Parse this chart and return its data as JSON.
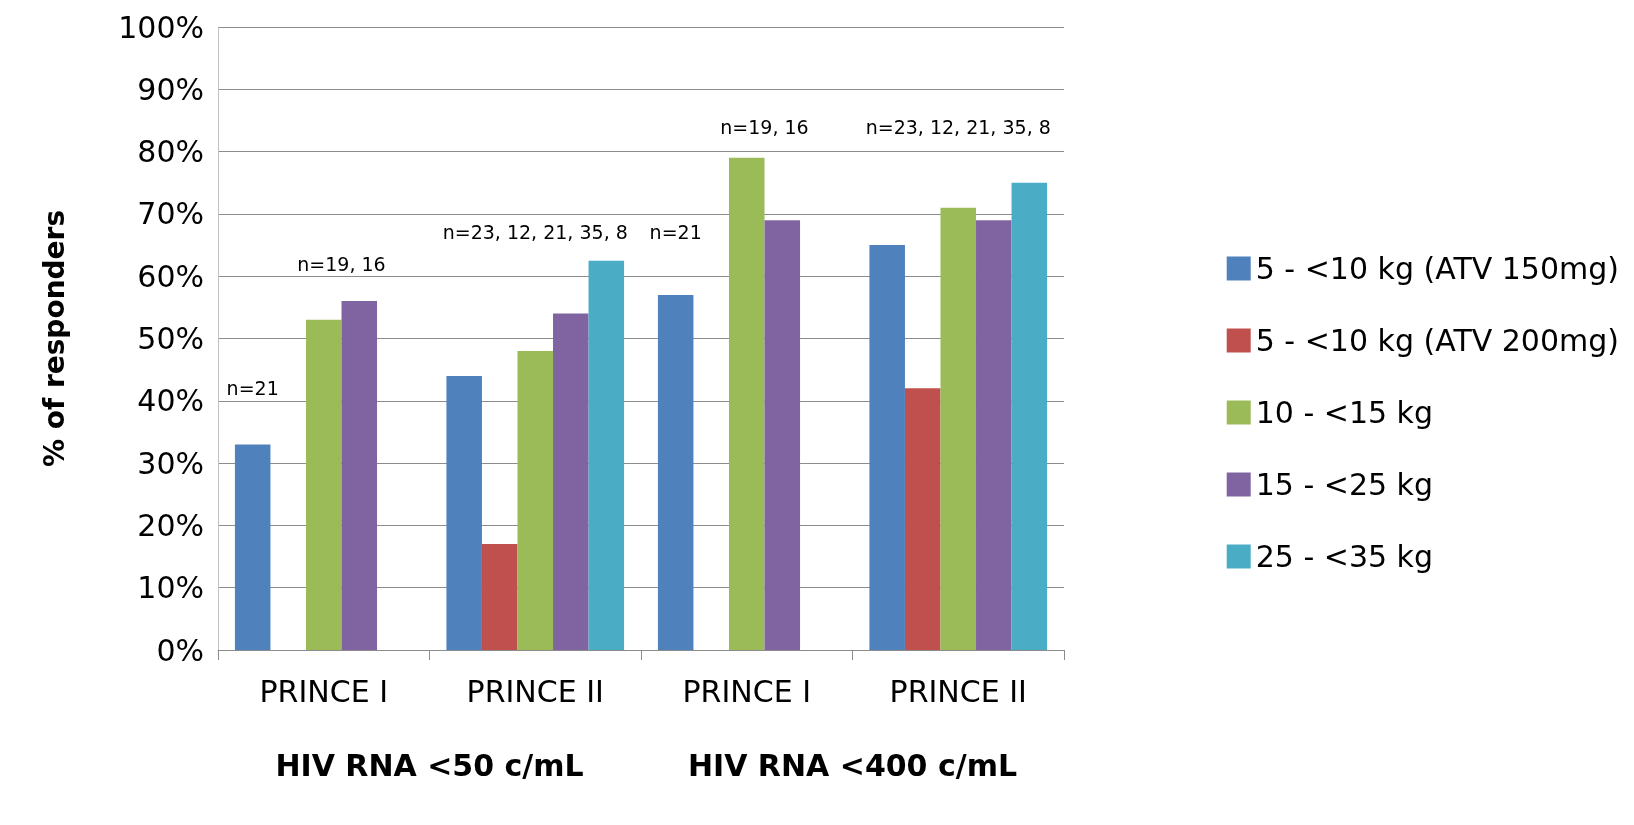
{
  "chart_data": {
    "type": "bar",
    "ylabel": "% of responders",
    "categories": [
      "PRINCE I",
      "PRINCE II",
      "PRINCE I",
      "PRINCE II"
    ],
    "series": [
      {
        "name": "5 - <10 kg (ATV 150mg)",
        "color": "#4f81bd",
        "values": [
          33,
          44,
          57,
          65
        ]
      },
      {
        "name": "5 - <10 kg (ATV 200mg)",
        "color": "#c0504d",
        "values": [
          null,
          17,
          null,
          42
        ]
      },
      {
        "name": "10 - <15 kg",
        "color": "#9bbb59",
        "values": [
          53,
          48,
          79,
          71
        ]
      },
      {
        "name": "15 - <25 kg",
        "color": "#8064a2",
        "values": [
          56,
          54,
          69,
          69
        ]
      },
      {
        "name": "25 - <35 kg",
        "color": "#4bacc6",
        "values": [
          null,
          62.5,
          null,
          75
        ]
      }
    ],
    "ylim": [
      0,
      100
    ],
    "yticks": [
      {
        "value": 0,
        "label": "0%"
      },
      {
        "value": 10,
        "label": "10%"
      },
      {
        "value": 20,
        "label": "20%"
      },
      {
        "value": 30,
        "label": "30%"
      },
      {
        "value": 40,
        "label": "40%"
      },
      {
        "value": 50,
        "label": "50%"
      },
      {
        "value": 60,
        "label": "60%"
      },
      {
        "value": 70,
        "label": "70%"
      },
      {
        "value": 80,
        "label": "80%"
      },
      {
        "value": 90,
        "label": "90%"
      },
      {
        "value": 100,
        "label": "100%"
      }
    ],
    "grid": "y",
    "legend": "right",
    "annotations": [
      "n=21",
      "n=19, 16",
      "n=23, 12, 21, 35, 8",
      "n=21",
      "n=19, 16",
      "n=23, 12, 21, 35, 8",
      "HIV RNA <50 c/mL",
      "HIV RNA <400 c/mL"
    ]
  }
}
